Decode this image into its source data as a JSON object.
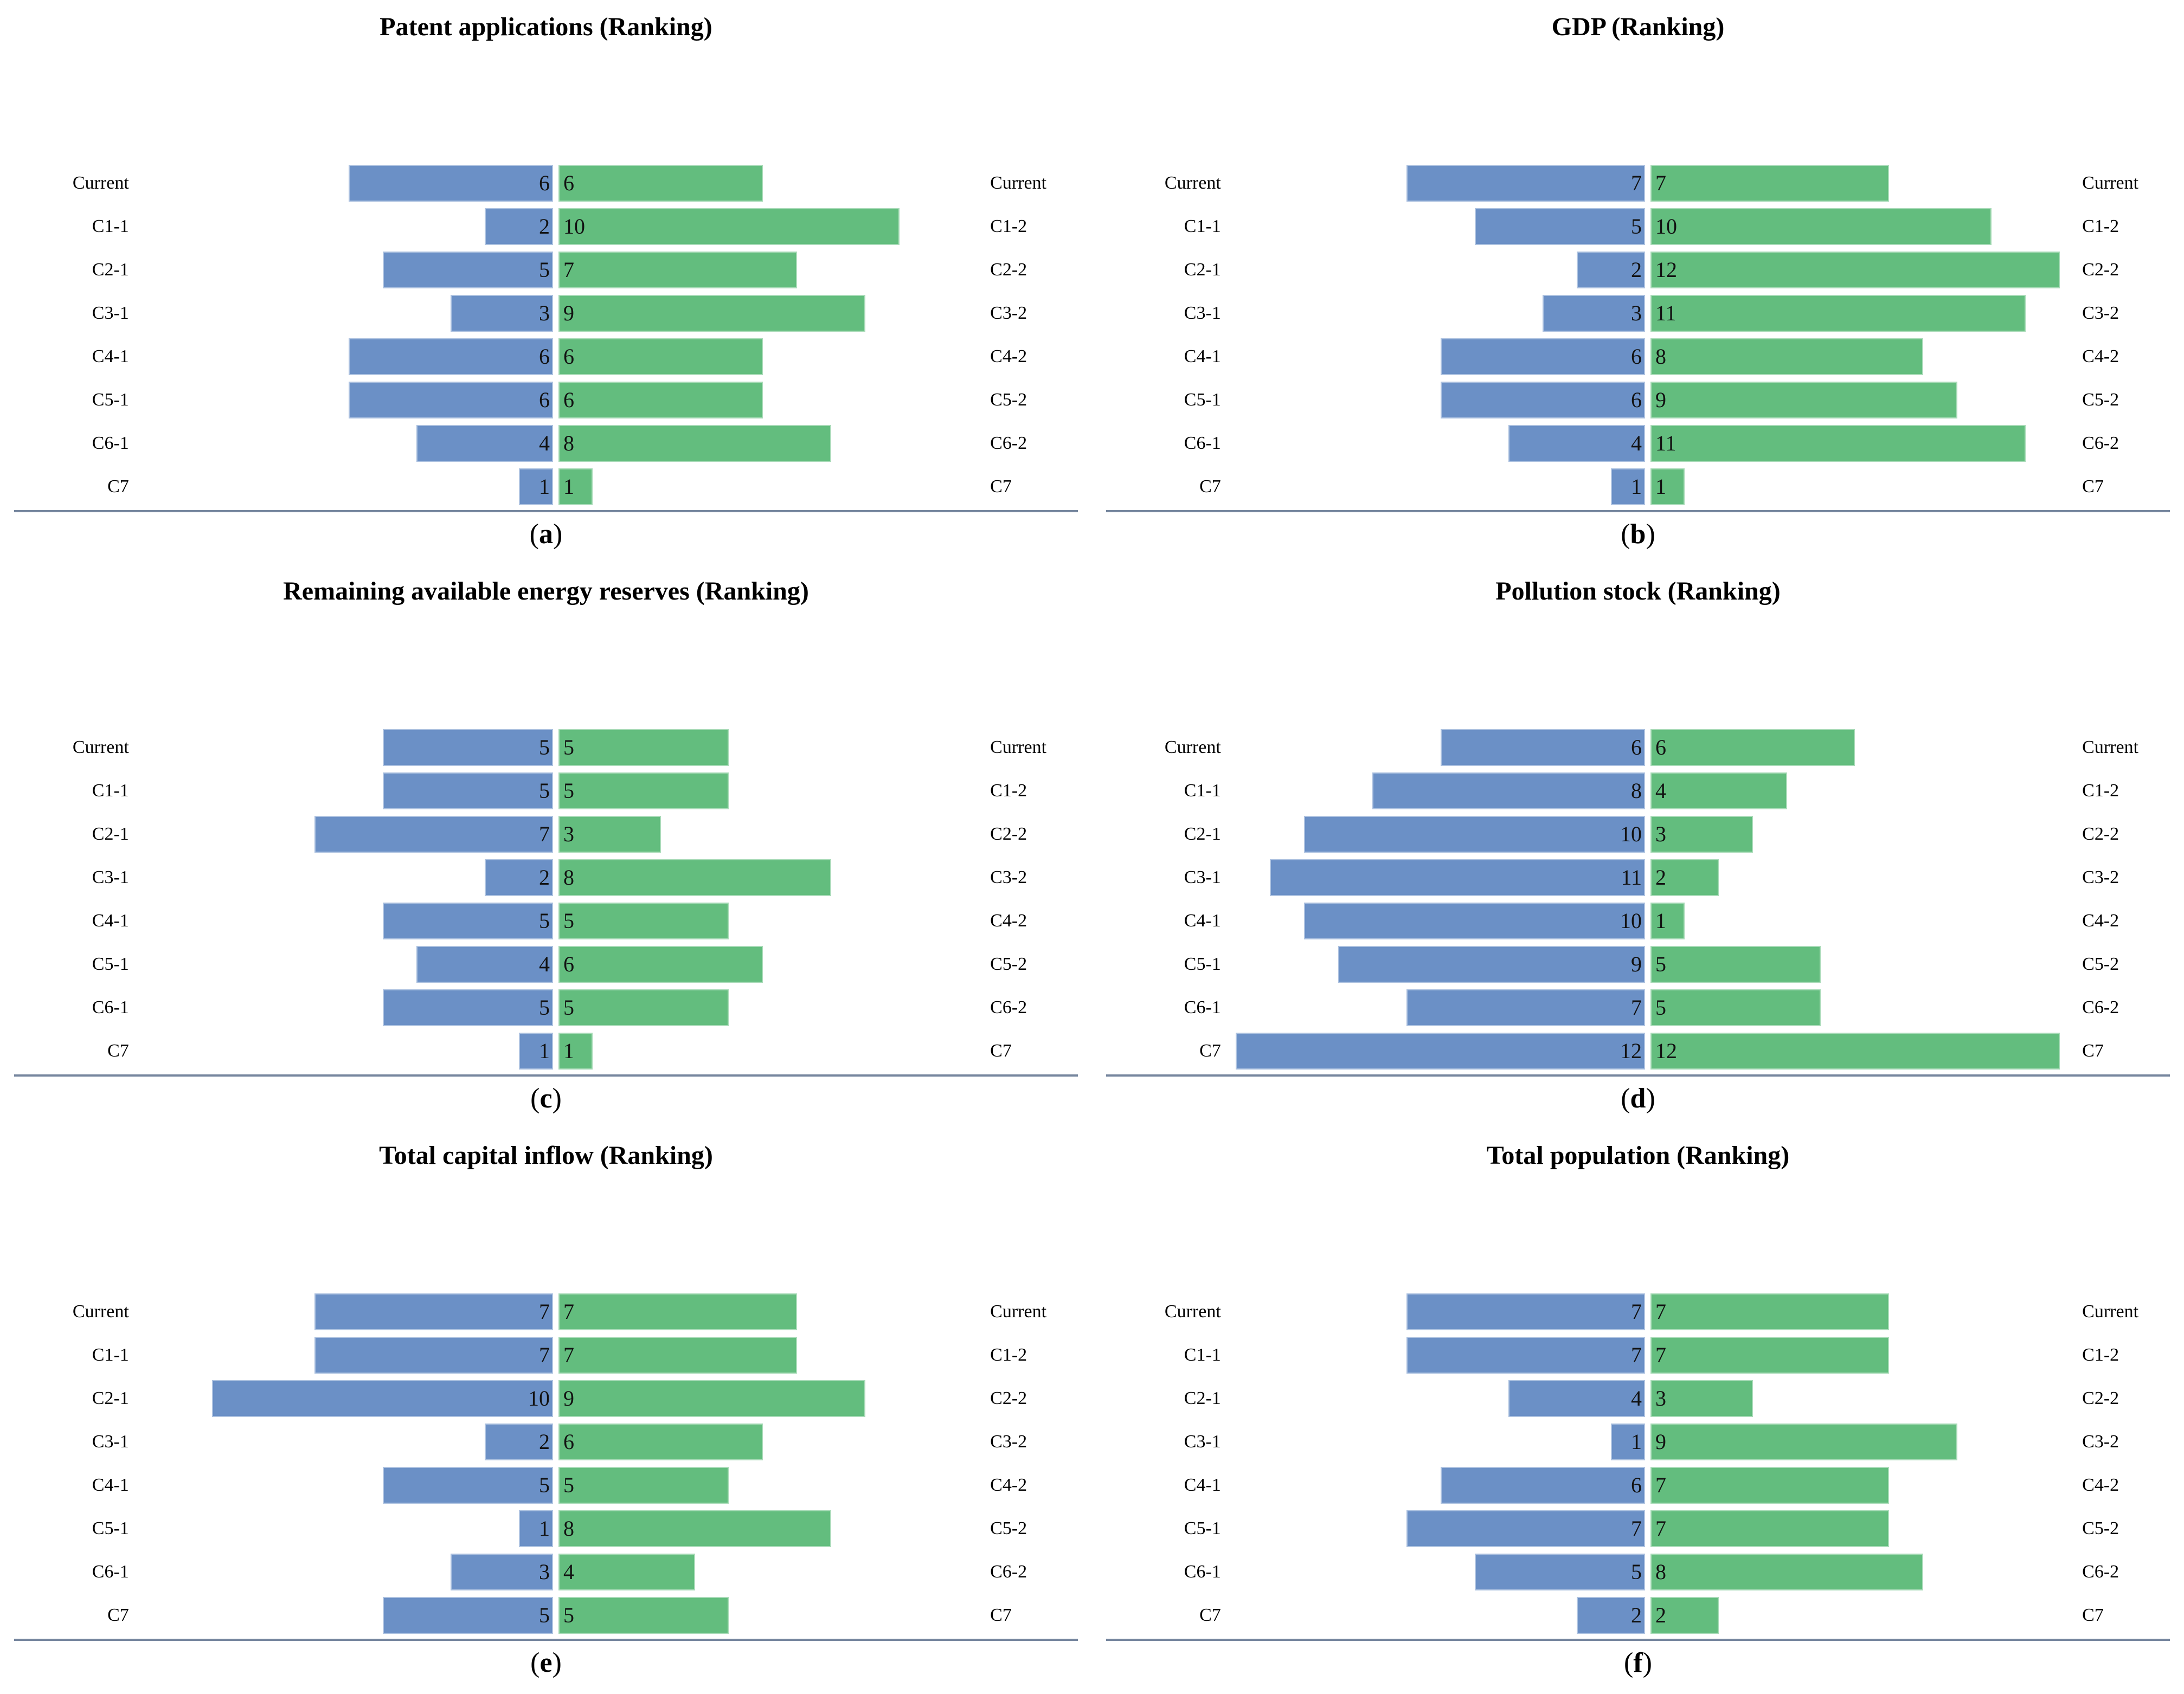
{
  "figure": {
    "background": "#ffffff",
    "caption_open": "(",
    "caption_close": ")"
  },
  "colors": {
    "bar_left_blue": "#6b90c6",
    "bar_right_green": "#63bd7e",
    "baseline": "#76869e",
    "value_text": "#121212",
    "label_text": "#000000"
  },
  "chart_data": [
    {
      "type": "bar",
      "variant": "diverging-tornado",
      "title": "Patent applications (Ranking)",
      "caption": "a",
      "legend": "none",
      "grid": "off",
      "xlim": [
        0,
        12.5
      ],
      "rows": [
        {
          "left_label": "Current",
          "right_label": "Current",
          "left_value": 6,
          "right_value": 6
        },
        {
          "left_label": "C1-1",
          "right_label": "C1-2",
          "left_value": 2,
          "right_value": 10
        },
        {
          "left_label": "C2-1",
          "right_label": "C2-2",
          "left_value": 5,
          "right_value": 7
        },
        {
          "left_label": "C3-1",
          "right_label": "C3-2",
          "left_value": 3,
          "right_value": 9
        },
        {
          "left_label": "C4-1",
          "right_label": "C4-2",
          "left_value": 6,
          "right_value": 6
        },
        {
          "left_label": "C5-1",
          "right_label": "C5-2",
          "left_value": 6,
          "right_value": 6
        },
        {
          "left_label": "C6-1",
          "right_label": "C6-2",
          "left_value": 4,
          "right_value": 8
        },
        {
          "left_label": "C7",
          "right_label": "C7",
          "left_value": 1,
          "right_value": 1
        }
      ]
    },
    {
      "type": "bar",
      "variant": "diverging-tornado",
      "title": "GDP (Ranking)",
      "caption": "b",
      "legend": "none",
      "grid": "off",
      "xlim": [
        0,
        12.5
      ],
      "rows": [
        {
          "left_label": "Current",
          "right_label": "Current",
          "left_value": 7,
          "right_value": 7
        },
        {
          "left_label": "C1-1",
          "right_label": "C1-2",
          "left_value": 5,
          "right_value": 10
        },
        {
          "left_label": "C2-1",
          "right_label": "C2-2",
          "left_value": 2,
          "right_value": 12
        },
        {
          "left_label": "C3-1",
          "right_label": "C3-2",
          "left_value": 3,
          "right_value": 11
        },
        {
          "left_label": "C4-1",
          "right_label": "C4-2",
          "left_value": 6,
          "right_value": 8
        },
        {
          "left_label": "C5-1",
          "right_label": "C5-2",
          "left_value": 6,
          "right_value": 9
        },
        {
          "left_label": "C6-1",
          "right_label": "C6-2",
          "left_value": 4,
          "right_value": 11
        },
        {
          "left_label": "C7",
          "right_label": "C7",
          "left_value": 1,
          "right_value": 1
        }
      ]
    },
    {
      "type": "bar",
      "variant": "diverging-tornado",
      "title": "Remaining available energy reserves (Ranking)",
      "caption": "c",
      "legend": "none",
      "grid": "off",
      "xlim": [
        0,
        12.5
      ],
      "rows": [
        {
          "left_label": "Current",
          "right_label": "Current",
          "left_value": 5,
          "right_value": 5
        },
        {
          "left_label": "C1-1",
          "right_label": "C1-2",
          "left_value": 5,
          "right_value": 5
        },
        {
          "left_label": "C2-1",
          "right_label": "C2-2",
          "left_value": 7,
          "right_value": 3
        },
        {
          "left_label": "C3-1",
          "right_label": "C3-2",
          "left_value": 2,
          "right_value": 8
        },
        {
          "left_label": "C4-1",
          "right_label": "C4-2",
          "left_value": 5,
          "right_value": 5
        },
        {
          "left_label": "C5-1",
          "right_label": "C5-2",
          "left_value": 4,
          "right_value": 6
        },
        {
          "left_label": "C6-1",
          "right_label": "C6-2",
          "left_value": 5,
          "right_value": 5
        },
        {
          "left_label": "C7",
          "right_label": "C7",
          "left_value": 1,
          "right_value": 1
        }
      ]
    },
    {
      "type": "bar",
      "variant": "diverging-tornado",
      "title": "Pollution stock (Ranking)",
      "caption": "d",
      "legend": "none",
      "grid": "off",
      "xlim": [
        0,
        12.5
      ],
      "rows": [
        {
          "left_label": "Current",
          "right_label": "Current",
          "left_value": 6,
          "right_value": 6
        },
        {
          "left_label": "C1-1",
          "right_label": "C1-2",
          "left_value": 8,
          "right_value": 4
        },
        {
          "left_label": "C2-1",
          "right_label": "C2-2",
          "left_value": 10,
          "right_value": 3
        },
        {
          "left_label": "C3-1",
          "right_label": "C3-2",
          "left_value": 11,
          "right_value": 2
        },
        {
          "left_label": "C4-1",
          "right_label": "C4-2",
          "left_value": 10,
          "right_value": 1
        },
        {
          "left_label": "C5-1",
          "right_label": "C5-2",
          "left_value": 9,
          "right_value": 5
        },
        {
          "left_label": "C6-1",
          "right_label": "C6-2",
          "left_value": 7,
          "right_value": 5
        },
        {
          "left_label": "C7",
          "right_label": "C7",
          "left_value": 12,
          "right_value": 12
        }
      ]
    },
    {
      "type": "bar",
      "variant": "diverging-tornado",
      "title": "Total capital inflow (Ranking)",
      "caption": "e",
      "legend": "none",
      "grid": "off",
      "xlim": [
        0,
        12.5
      ],
      "rows": [
        {
          "left_label": "Current",
          "right_label": "Current",
          "left_value": 7,
          "right_value": 7
        },
        {
          "left_label": "C1-1",
          "right_label": "C1-2",
          "left_value": 7,
          "right_value": 7
        },
        {
          "left_label": "C2-1",
          "right_label": "C2-2",
          "left_value": 10,
          "right_value": 9
        },
        {
          "left_label": "C3-1",
          "right_label": "C3-2",
          "left_value": 2,
          "right_value": 6
        },
        {
          "left_label": "C4-1",
          "right_label": "C4-2",
          "left_value": 5,
          "right_value": 5
        },
        {
          "left_label": "C5-1",
          "right_label": "C5-2",
          "left_value": 1,
          "right_value": 8
        },
        {
          "left_label": "C6-1",
          "right_label": "C6-2",
          "left_value": 3,
          "right_value": 4
        },
        {
          "left_label": "C7",
          "right_label": "C7",
          "left_value": 5,
          "right_value": 5
        }
      ]
    },
    {
      "type": "bar",
      "variant": "diverging-tornado",
      "title": "Total population (Ranking)",
      "caption": "f",
      "legend": "none",
      "grid": "off",
      "xlim": [
        0,
        12.5
      ],
      "rows": [
        {
          "left_label": "Current",
          "right_label": "Current",
          "left_value": 7,
          "right_value": 7
        },
        {
          "left_label": "C1-1",
          "right_label": "C1-2",
          "left_value": 7,
          "right_value": 7
        },
        {
          "left_label": "C2-1",
          "right_label": "C2-2",
          "left_value": 4,
          "right_value": 3
        },
        {
          "left_label": "C3-1",
          "right_label": "C3-2",
          "left_value": 1,
          "right_value": 9
        },
        {
          "left_label": "C4-1",
          "right_label": "C4-2",
          "left_value": 6,
          "right_value": 7
        },
        {
          "left_label": "C5-1",
          "right_label": "C5-2",
          "left_value": 7,
          "right_value": 7
        },
        {
          "left_label": "C6-1",
          "right_label": "C6-2",
          "left_value": 5,
          "right_value": 8
        },
        {
          "left_label": "C7",
          "right_label": "C7",
          "left_value": 2,
          "right_value": 2
        }
      ]
    }
  ]
}
